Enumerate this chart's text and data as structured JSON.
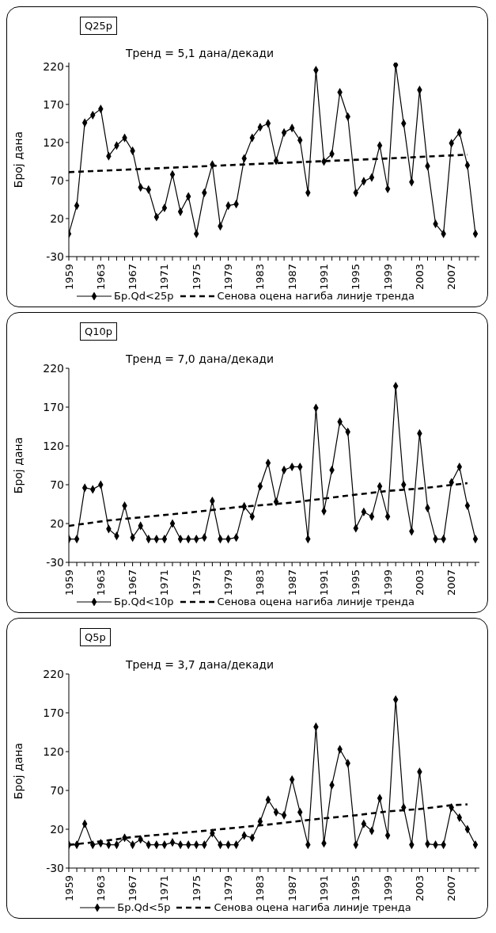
{
  "chart_data": [
    {
      "type": "line",
      "title": "Q25p",
      "annotations": [
        "Тренд = 5,1 дана/декади"
      ],
      "ylabel": "Број дана",
      "legend": "bottom",
      "ylim": [
        -30,
        225
      ],
      "yticks": [
        -30,
        20,
        70,
        120,
        170,
        220
      ],
      "xlim": [
        1959,
        2010.5
      ],
      "xticks": [
        1959,
        {
          "value": 1960,
          "label": null
        },
        {
          "value": 1961,
          "label": null
        },
        {
          "value": 1962,
          "label": null
        },
        1963,
        {
          "value": 1964,
          "label": null
        },
        {
          "value": 1965,
          "label": null
        },
        {
          "value": 1966,
          "label": null
        },
        1967,
        {
          "value": 1968,
          "label": null
        },
        {
          "value": 1969,
          "label": null
        },
        {
          "value": 1970,
          "label": null
        },
        1971,
        {
          "value": 1972,
          "label": null
        },
        {
          "value": 1973,
          "label": null
        },
        {
          "value": 1974,
          "label": null
        },
        1975,
        {
          "value": 1976,
          "label": null
        },
        {
          "value": 1977,
          "label": null
        },
        {
          "value": 1978,
          "label": null
        },
        1979,
        {
          "value": 1980,
          "label": null
        },
        {
          "value": 1981,
          "label": null
        },
        {
          "value": 1982,
          "label": null
        },
        1983,
        {
          "value": 1984,
          "label": null
        },
        {
          "value": 1985,
          "label": null
        },
        {
          "value": 1986,
          "label": null
        },
        1987,
        {
          "value": 1988,
          "label": null
        },
        {
          "value": 1989,
          "label": null
        },
        {
          "value": 1990,
          "label": null
        },
        1991,
        {
          "value": 1992,
          "label": null
        },
        {
          "value": 1993,
          "label": null
        },
        {
          "value": 1994,
          "label": null
        },
        1995,
        {
          "value": 1996,
          "label": null
        },
        {
          "value": 1997,
          "label": null
        },
        {
          "value": 1998,
          "label": null
        },
        1999,
        {
          "value": 2000,
          "label": null
        },
        {
          "value": 2001,
          "label": null
        },
        {
          "value": 2002,
          "label": null
        },
        2003,
        {
          "value": 2004,
          "label": null
        },
        {
          "value": 2005,
          "label": null
        },
        {
          "value": 2006,
          "label": null
        },
        2007,
        {
          "value": 2008,
          "label": null
        },
        {
          "value": 2009,
          "label": null
        },
        {
          "value": 2010,
          "label": null
        }
      ],
      "x": [
        1959,
        1960,
        1961,
        1962,
        1963,
        1964,
        1965,
        1966,
        1967,
        1968,
        1969,
        1970,
        1971,
        1972,
        1973,
        1974,
        1975,
        1976,
        1977,
        1978,
        1979,
        1980,
        1981,
        1982,
        1983,
        1984,
        1985,
        1986,
        1987,
        1988,
        1989,
        1990,
        1991,
        1992,
        1993,
        1994,
        1995,
        1996,
        1997,
        1998,
        1999,
        2000,
        2001,
        2002,
        2003,
        2004,
        2005,
        2006,
        2007,
        2008,
        2009,
        2010
      ],
      "series": [
        {
          "name": "Бр.Qd<25p",
          "color": "#000000",
          "marker": "diamond",
          "line_style": "solid",
          "values": [
            0,
            37,
            146,
            156,
            164,
            102,
            116,
            126,
            109,
            61,
            58,
            22,
            34,
            78,
            29,
            49,
            0,
            54,
            91,
            10,
            37,
            39,
            99,
            126,
            140,
            145,
            96,
            133,
            139,
            123,
            54,
            215,
            95,
            105,
            186,
            154,
            54,
            69,
            74,
            116,
            59,
            222,
            145,
            68,
            189,
            89,
            13,
            0,
            119,
            133,
            90,
            0
          ]
        },
        {
          "name": "Сенова оцена нагиба линије тренда",
          "type": "line",
          "color": "#000000",
          "marker": "none",
          "line_style": "dashed",
          "x": [
            1959,
            1983,
            1999,
            2009
          ],
          "values": [
            81,
            92,
            99,
            104
          ]
        }
      ]
    },
    {
      "type": "line",
      "title": "Q10p",
      "annotations": [
        "Тренд = 7,0 дана/декади"
      ],
      "ylabel": "Број дана",
      "legend": "bottom",
      "ylim": [
        -30,
        220
      ],
      "yticks": [
        -30,
        20,
        70,
        120,
        170,
        220
      ],
      "xlim": [
        1959,
        2010.5
      ],
      "xticks": [
        1959,
        {
          "value": 1960,
          "label": null
        },
        {
          "value": 1961,
          "label": null
        },
        {
          "value": 1962,
          "label": null
        },
        1963,
        {
          "value": 1964,
          "label": null
        },
        {
          "value": 1965,
          "label": null
        },
        {
          "value": 1966,
          "label": null
        },
        1967,
        {
          "value": 1968,
          "label": null
        },
        {
          "value": 1969,
          "label": null
        },
        {
          "value": 1970,
          "label": null
        },
        1971,
        {
          "value": 1972,
          "label": null
        },
        {
          "value": 1973,
          "label": null
        },
        {
          "value": 1974,
          "label": null
        },
        1975,
        {
          "value": 1976,
          "label": null
        },
        {
          "value": 1977,
          "label": null
        },
        {
          "value": 1978,
          "label": null
        },
        1979,
        {
          "value": 1980,
          "label": null
        },
        {
          "value": 1981,
          "label": null
        },
        {
          "value": 1982,
          "label": null
        },
        1983,
        {
          "value": 1984,
          "label": null
        },
        {
          "value": 1985,
          "label": null
        },
        {
          "value": 1986,
          "label": null
        },
        1987,
        {
          "value": 1988,
          "label": null
        },
        {
          "value": 1989,
          "label": null
        },
        {
          "value": 1990,
          "label": null
        },
        1991,
        {
          "value": 1992,
          "label": null
        },
        {
          "value": 1993,
          "label": null
        },
        {
          "value": 1994,
          "label": null
        },
        1995,
        {
          "value": 1996,
          "label": null
        },
        {
          "value": 1997,
          "label": null
        },
        {
          "value": 1998,
          "label": null
        },
        1999,
        {
          "value": 2000,
          "label": null
        },
        {
          "value": 2001,
          "label": null
        },
        {
          "value": 2002,
          "label": null
        },
        2003,
        {
          "value": 2004,
          "label": null
        },
        {
          "value": 2005,
          "label": null
        },
        {
          "value": 2006,
          "label": null
        },
        2007,
        {
          "value": 2008,
          "label": null
        },
        {
          "value": 2009,
          "label": null
        },
        {
          "value": 2010,
          "label": null
        }
      ],
      "x": [
        1959,
        1960,
        1961,
        1962,
        1963,
        1964,
        1965,
        1966,
        1967,
        1968,
        1969,
        1970,
        1971,
        1972,
        1973,
        1974,
        1975,
        1976,
        1977,
        1978,
        1979,
        1980,
        1981,
        1982,
        1983,
        1984,
        1985,
        1986,
        1987,
        1988,
        1989,
        1990,
        1991,
        1992,
        1993,
        1994,
        1995,
        1996,
        1997,
        1998,
        1999,
        2000,
        2001,
        2002,
        2003,
        2004,
        2005,
        2006,
        2007,
        2008,
        2009,
        2010
      ],
      "series": [
        {
          "name": "Бр.Qd<10p",
          "color": "#000000",
          "marker": "diamond",
          "line_style": "solid",
          "values": [
            0,
            0,
            66,
            64,
            70,
            13,
            4,
            43,
            2,
            17,
            0,
            0,
            0,
            20,
            0,
            0,
            0,
            2,
            49,
            0,
            0,
            2,
            42,
            29,
            68,
            98,
            48,
            89,
            93,
            93,
            0,
            169,
            36,
            89,
            151,
            138,
            14,
            35,
            29,
            68,
            29,
            197,
            70,
            10,
            136,
            40,
            0,
            0,
            73,
            93,
            43,
            0
          ]
        },
        {
          "name": "Сенова оцена нагиба линије тренда",
          "type": "line",
          "color": "#000000",
          "marker": "none",
          "line_style": "dashed",
          "x": [
            1959,
            1964,
            1968,
            1974,
            1980,
            1987,
            1994,
            1999,
            2003,
            2009
          ],
          "values": [
            17,
            24,
            28,
            34,
            41,
            47,
            56,
            62,
            65,
            72
          ]
        }
      ]
    },
    {
      "type": "line",
      "title": "Q5p",
      "annotations": [
        "Тренд = 3,7 дана/декади"
      ],
      "ylabel": "Број дана",
      "legend": "bottom",
      "ylim": [
        -30,
        220
      ],
      "yticks": [
        -30,
        20,
        70,
        120,
        170,
        220
      ],
      "xlim": [
        1959,
        2010.5
      ],
      "xticks": [
        1959,
        {
          "value": 1960,
          "label": null
        },
        {
          "value": 1961,
          "label": null
        },
        {
          "value": 1962,
          "label": null
        },
        1963,
        {
          "value": 1964,
          "label": null
        },
        {
          "value": 1965,
          "label": null
        },
        {
          "value": 1966,
          "label": null
        },
        1967,
        {
          "value": 1968,
          "label": null
        },
        {
          "value": 1969,
          "label": null
        },
        {
          "value": 1970,
          "label": null
        },
        1971,
        {
          "value": 1972,
          "label": null
        },
        {
          "value": 1973,
          "label": null
        },
        {
          "value": 1974,
          "label": null
        },
        1975,
        {
          "value": 1976,
          "label": null
        },
        {
          "value": 1977,
          "label": null
        },
        {
          "value": 1978,
          "label": null
        },
        1979,
        {
          "value": 1980,
          "label": null
        },
        {
          "value": 1981,
          "label": null
        },
        {
          "value": 1982,
          "label": null
        },
        1983,
        {
          "value": 1984,
          "label": null
        },
        {
          "value": 1985,
          "label": null
        },
        {
          "value": 1986,
          "label": null
        },
        1987,
        {
          "value": 1988,
          "label": null
        },
        {
          "value": 1989,
          "label": null
        },
        {
          "value": 1990,
          "label": null
        },
        1991,
        {
          "value": 1992,
          "label": null
        },
        {
          "value": 1993,
          "label": null
        },
        {
          "value": 1994,
          "label": null
        },
        1995,
        {
          "value": 1996,
          "label": null
        },
        {
          "value": 1997,
          "label": null
        },
        {
          "value": 1998,
          "label": null
        },
        1999,
        {
          "value": 2000,
          "label": null
        },
        {
          "value": 2001,
          "label": null
        },
        {
          "value": 2002,
          "label": null
        },
        2003,
        {
          "value": 2004,
          "label": null
        },
        {
          "value": 2005,
          "label": null
        },
        {
          "value": 2006,
          "label": null
        },
        2007,
        {
          "value": 2008,
          "label": null
        },
        {
          "value": 2009,
          "label": null
        },
        {
          "value": 2010,
          "label": null
        }
      ],
      "x": [
        1959,
        1960,
        1961,
        1962,
        1963,
        1964,
        1965,
        1966,
        1967,
        1968,
        1969,
        1970,
        1971,
        1972,
        1973,
        1974,
        1975,
        1976,
        1977,
        1978,
        1979,
        1980,
        1981,
        1982,
        1983,
        1984,
        1985,
        1986,
        1987,
        1988,
        1989,
        1990,
        1991,
        1992,
        1993,
        1994,
        1995,
        1996,
        1997,
        1998,
        1999,
        2000,
        2001,
        2002,
        2003,
        2004,
        2005,
        2006,
        2007,
        2008,
        2009,
        2010
      ],
      "series": [
        {
          "name": "Бр.Qd<5p",
          "color": "#000000",
          "marker": "diamond",
          "line_style": "solid",
          "values": [
            0,
            0,
            27,
            0,
            2,
            0,
            0,
            9,
            0,
            7,
            0,
            0,
            0,
            3,
            0,
            0,
            0,
            0,
            15,
            0,
            0,
            0,
            12,
            9,
            30,
            58,
            42,
            38,
            84,
            42,
            0,
            152,
            2,
            77,
            123,
            105,
            0,
            27,
            18,
            60,
            12,
            187,
            48,
            0,
            94,
            1,
            0,
            0,
            48,
            35,
            20,
            0
          ]
        },
        {
          "name": "Сенова оцена нагиба линије тренда",
          "type": "line",
          "color": "#000000",
          "marker": "none",
          "line_style": "dashed",
          "x": [
            1959,
            1962,
            1967,
            1975,
            1984,
            1990,
            1995,
            1999,
            2003,
            2007,
            2009
          ],
          "values": [
            0,
            3,
            10,
            17,
            26,
            33,
            38,
            43,
            46,
            51,
            52
          ]
        }
      ]
    }
  ]
}
